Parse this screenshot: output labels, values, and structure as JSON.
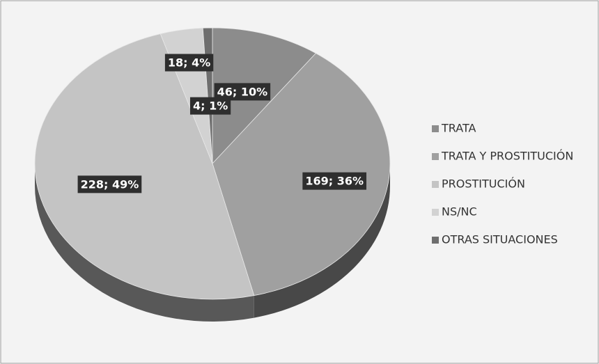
{
  "chart_data": {
    "type": "pie",
    "categories": [
      "TRATA",
      "TRATA Y PROSTITUCIÓN",
      "PROSTITUCIÓN",
      "NS/NC",
      "OTRAS SITUACIONES"
    ],
    "values": [
      46,
      169,
      228,
      18,
      4
    ],
    "value_labels": [
      "46; 10%",
      "169; 36%",
      "228; 49%",
      "18; 4%",
      "4; 1%"
    ],
    "colors": [
      "#8c8c8c",
      "#a0a0a0",
      "#c4c4c4",
      "#d2d2d2",
      "#6e6e6e"
    ],
    "legend": "right"
  }
}
